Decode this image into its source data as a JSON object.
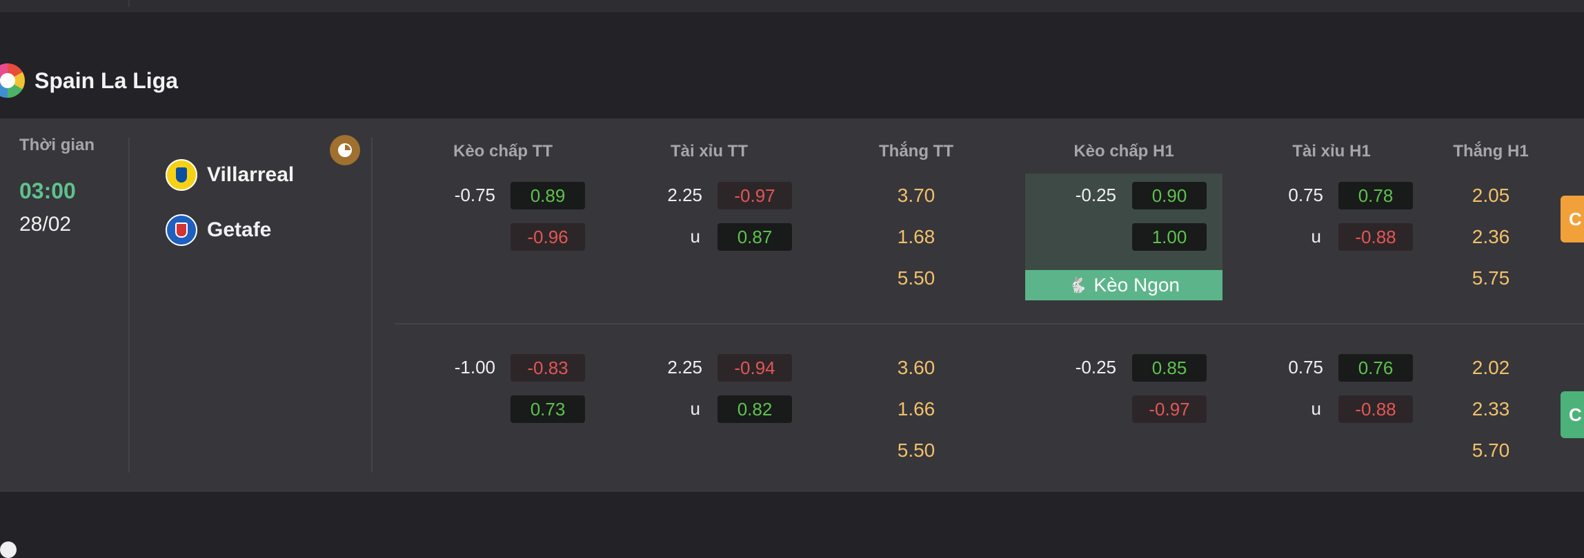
{
  "league": {
    "title": "Spain La Liga",
    "logo_icon": "laliga-logo-icon"
  },
  "match": {
    "time_label": "Thời gian",
    "kickoff_time": "03:00",
    "kickoff_date": "28/02",
    "home_team": "Villarreal",
    "away_team": "Getafe",
    "stats_icon": "pie-chart-icon"
  },
  "columns": [
    "Kèo chấp TT",
    "Tài xỉu TT",
    "Thắng TT",
    "Kèo chấp H1",
    "Tài xỉu H1",
    "Thắng H1"
  ],
  "rows": [
    {
      "ah_ft": {
        "line": "-0.75",
        "home": "0.89",
        "away": "-0.96"
      },
      "ou_ft": {
        "line": "2.25",
        "over": "-0.97",
        "u_label": "u",
        "under": "0.87"
      },
      "win_ft": [
        "3.70",
        "1.68",
        "5.50"
      ],
      "ah_h1": {
        "line": "-0.25",
        "home": "0.90",
        "away": "1.00"
      },
      "ou_h1": {
        "line": "0.75",
        "over": "0.78",
        "u_label": "u",
        "under": "-0.88"
      },
      "win_h1": [
        "2.05",
        "2.36",
        "5.75"
      ]
    },
    {
      "ah_ft": {
        "line": "-1.00",
        "home": "-0.83",
        "away": "0.73"
      },
      "ou_ft": {
        "line": "2.25",
        "over": "-0.94",
        "u_label": "u",
        "under": "0.82"
      },
      "win_ft": [
        "3.60",
        "1.66",
        "5.50"
      ],
      "ah_h1": {
        "line": "-0.25",
        "home": "0.85",
        "away": "-0.97"
      },
      "ou_h1": {
        "line": "0.75",
        "over": "0.76",
        "u_label": "u",
        "under": "-0.88"
      },
      "win_h1": [
        "2.02",
        "2.33",
        "5.70"
      ]
    }
  ],
  "highlight": {
    "label": "Kèo Ngon",
    "icon": "rabbit-icon"
  },
  "colors": {
    "positive": "#5ec24e",
    "negative": "#e25656",
    "win": "#f2c06a",
    "accent_green": "#5cb58a",
    "kickoff": "#5ec28c"
  }
}
